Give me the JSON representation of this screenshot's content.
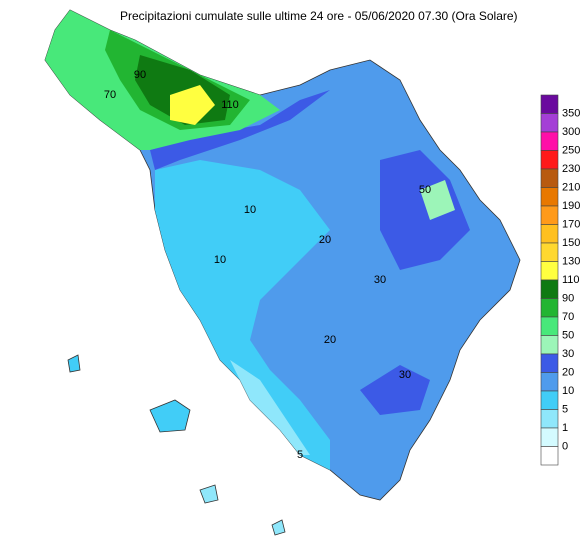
{
  "title": "Precipitazioni cumulate sulle ultime 24 ore - 05/06/2020 07.30 (Ora Solare)",
  "legend": {
    "labels": [
      "350",
      "300",
      "250",
      "230",
      "210",
      "190",
      "170",
      "150",
      "130",
      "110",
      "90",
      "70",
      "50",
      "30",
      "20",
      "10",
      "5",
      "1",
      "0"
    ],
    "colors": [
      "#6a0a9e",
      "#a43fd6",
      "#ff0fa8",
      "#ff1a1a",
      "#b85a10",
      "#e87800",
      "#ff9a1a",
      "#ffc020",
      "#ffd830",
      "#ffff40",
      "#0f7a12",
      "#22b532",
      "#48e87a",
      "#9cf5b8",
      "#3c5ae6",
      "#4f9bec",
      "#41cdf7",
      "#8fe7fb",
      "#d4fbff",
      "#ffffff"
    ]
  },
  "map_labels": [
    "110",
    "90",
    "70",
    "50",
    "30",
    "30",
    "20",
    "20",
    "10",
    "10",
    "5"
  ]
}
